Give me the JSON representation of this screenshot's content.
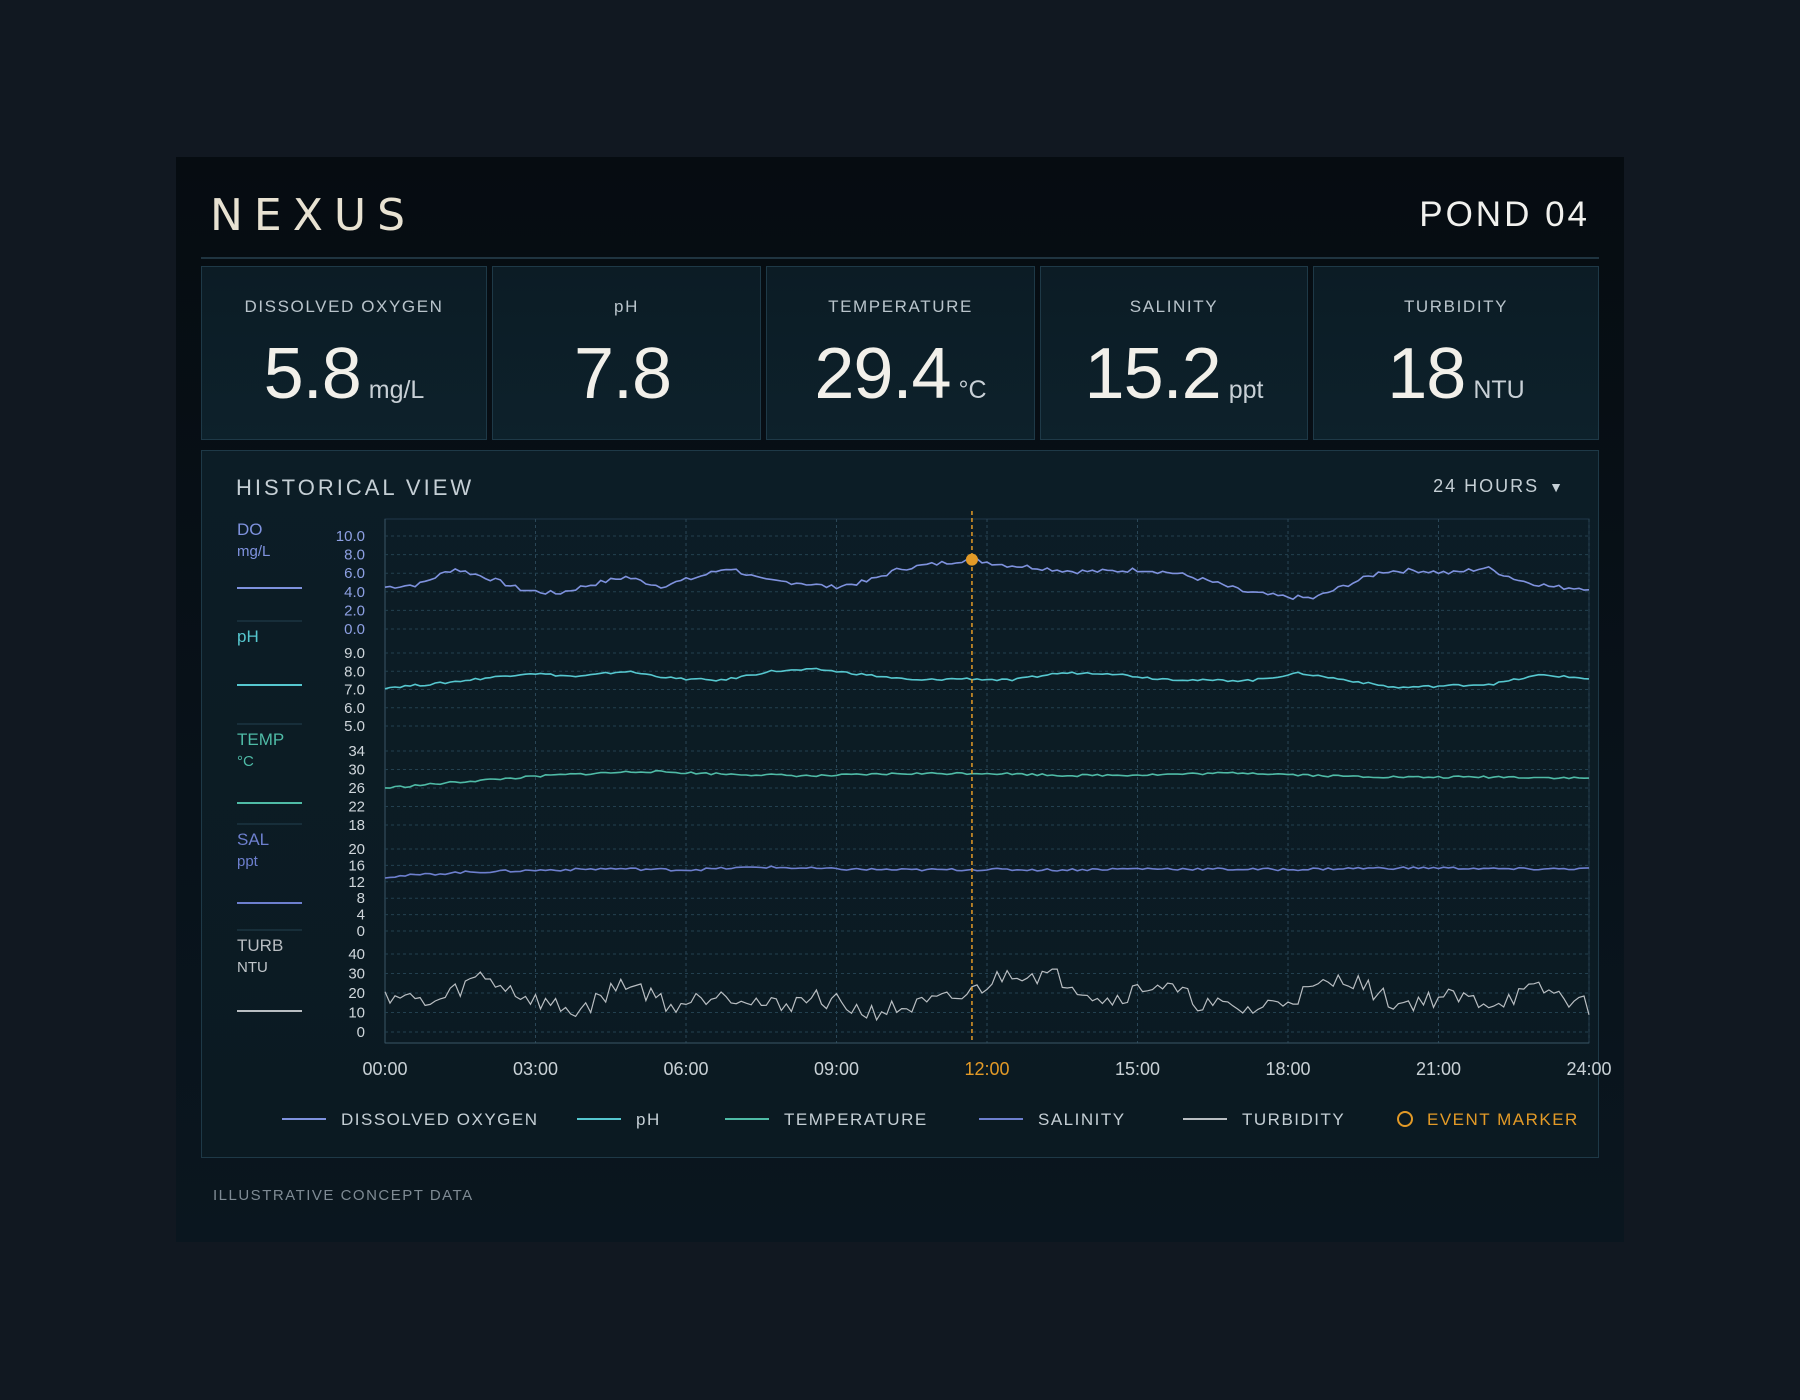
{
  "header": {
    "brand": "NEXUS",
    "site": "POND 04"
  },
  "metrics": [
    {
      "label": "DISSOLVED OXYGEN",
      "value": "5.8",
      "unit": "mg/L"
    },
    {
      "label": "pH",
      "value": "7.8",
      "unit": ""
    },
    {
      "label": "TEMPERATURE",
      "value": "29.4",
      "unit": "°C"
    },
    {
      "label": "SALINITY",
      "value": "15.2",
      "unit": "ppt"
    },
    {
      "label": "TURBIDITY",
      "value": "18",
      "unit": "NTU"
    }
  ],
  "history": {
    "title": "HISTORICAL VIEW",
    "range_label": "24 HOURS"
  },
  "footer": {
    "note": "ILLUSTRATIVE CONCEPT DATA"
  },
  "colors": {
    "do": "#7f92de",
    "ph": "#56c7cf",
    "temp": "#4fbba6",
    "sal": "#6d7fce",
    "turb": "#b9bec2",
    "event": "#e39a27"
  },
  "chart_data": {
    "type": "line",
    "x_ticks": [
      "00:00",
      "03:00",
      "06:00",
      "09:00",
      "12:00",
      "15:00",
      "18:00",
      "21:00",
      "24:00"
    ],
    "x_range_hours": [
      0,
      24
    ],
    "event_marker": {
      "label": "EVENT MARKER",
      "x_hour": 11.7,
      "tick_label": "12:00"
    },
    "lanes": [
      {
        "key": "do",
        "label": "DO",
        "unit": "mg/L",
        "color_key": "do",
        "ticks": [
          "10.0",
          "8.0",
          "6.0",
          "4.0",
          "2.0",
          "0.0"
        ],
        "ylim": [
          0,
          10
        ],
        "series_name": "DISSOLVED OXYGEN",
        "values": [
          4.5,
          4.8,
          6.5,
          5.5,
          4.2,
          3.8,
          4.8,
          5.6,
          4.6,
          5.5,
          6.6,
          5.2,
          5.0,
          4.5,
          5.1,
          6.5,
          7.0,
          7.5,
          6.9,
          6.6,
          6.2,
          6.2,
          6.4,
          6.0,
          5.1,
          4.0,
          3.5,
          3.3,
          4.8,
          6.2,
          6.3,
          6.0,
          6.6,
          5.2,
          4.5,
          4.4
        ]
      },
      {
        "key": "ph",
        "label": "pH",
        "unit": "",
        "color_key": "ph",
        "ticks": [
          "9.0",
          "8.0",
          "7.0",
          "6.0",
          "5.0"
        ],
        "ylim": [
          5,
          9
        ],
        "series_name": "pH",
        "values": [
          7.1,
          7.3,
          7.6,
          7.9,
          7.7,
          8.0,
          7.6,
          7.5,
          8.0,
          8.1,
          7.8,
          7.5,
          7.6,
          7.5,
          7.9,
          7.9,
          7.6,
          7.5,
          7.5,
          7.9,
          7.5,
          7.1,
          7.2,
          7.3,
          7.8,
          7.6
        ]
      },
      {
        "key": "temp",
        "label": "TEMP",
        "unit": "°C",
        "color_key": "temp",
        "ticks": [
          "34",
          "30",
          "26",
          "22",
          "18"
        ],
        "ylim": [
          18,
          34
        ],
        "series_name": "TEMPERATURE",
        "values": [
          26.0,
          27.5,
          28.8,
          29.6,
          29.0,
          28.6,
          29.1,
          29.2,
          28.7,
          28.9,
          29.3,
          28.6,
          28.3,
          28.4,
          28.1
        ]
      },
      {
        "key": "sal",
        "label": "SAL",
        "unit": "ppt",
        "color_key": "sal",
        "ticks": [
          "20",
          "16",
          "12",
          "8",
          "4",
          "0"
        ],
        "ylim": [
          0,
          20
        ],
        "series_name": "SALINITY",
        "values": [
          13.2,
          14.3,
          14.8,
          15.2,
          14.9,
          15.6,
          15.1,
          14.9,
          15.0,
          14.9,
          15.2,
          15.1,
          15.0,
          15.3,
          15.4,
          15.1,
          15.2
        ]
      },
      {
        "key": "turb",
        "label": "TURB",
        "unit": "NTU",
        "color_key": "turb",
        "ticks": [
          "40",
          "30",
          "20",
          "10",
          "0"
        ],
        "ylim": [
          0,
          40
        ],
        "series_name": "TURBIDITY",
        "values": [
          20,
          14,
          29,
          17,
          10,
          26,
          13,
          21,
          13,
          18,
          10,
          13,
          18,
          31,
          28,
          16,
          25,
          14,
          11,
          19,
          28,
          14,
          18,
          15,
          22,
          13
        ]
      }
    ]
  }
}
